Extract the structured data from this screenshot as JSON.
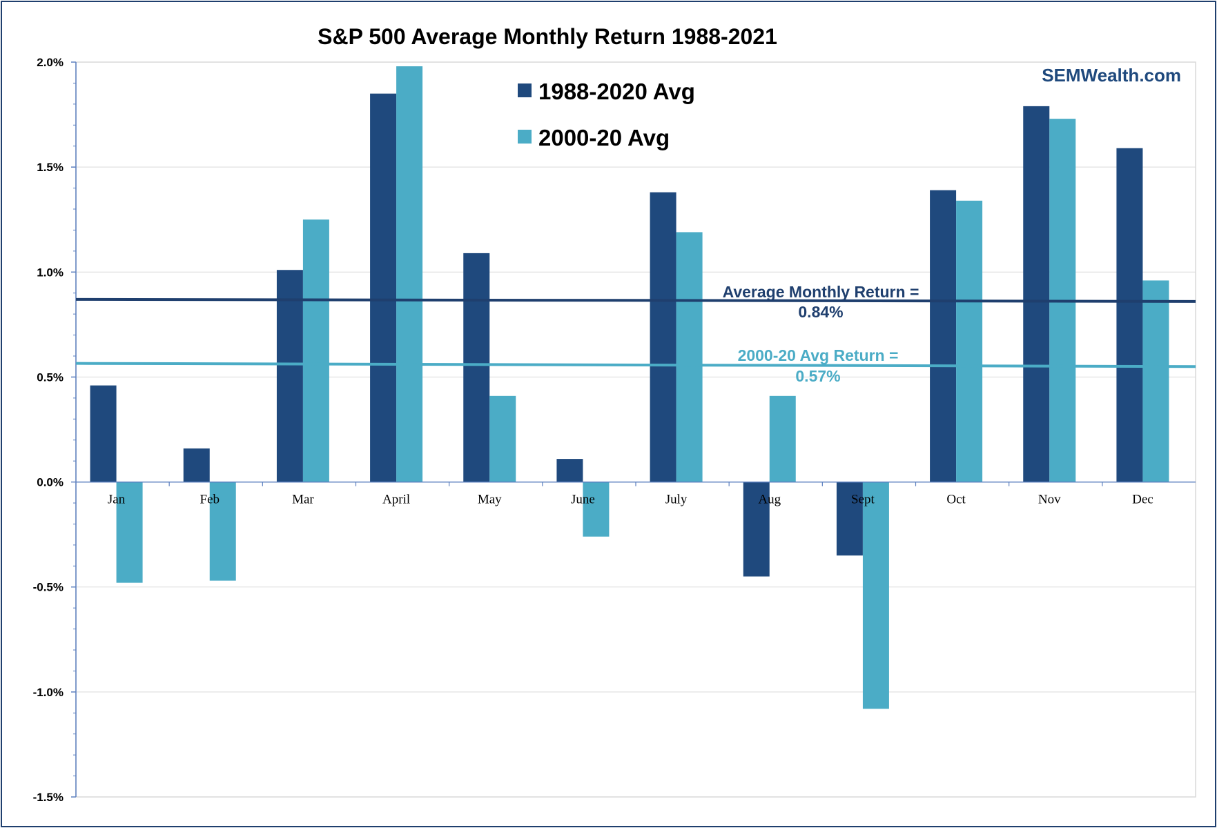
{
  "colors": {
    "series_dark": "#1f497d",
    "series_light": "#4bacc6",
    "avg_dark": "#1f3f6e",
    "avg_light": "#4bacc6",
    "brand": "#1f497d",
    "gridline": "#d9d9d9",
    "axis": "#5b7fbf"
  },
  "brand": {
    "label": "SEMWealth.com"
  },
  "chart_data": {
    "type": "bar",
    "title": "S&P 500 Average Monthly Return 1988-2021",
    "xlabel": "",
    "ylabel": "",
    "ylim": [
      -1.5,
      2.0
    ],
    "yticks": [
      2.0,
      1.5,
      1.0,
      0.5,
      0.0,
      -0.5,
      -1.0,
      -1.5
    ],
    "ytick_labels": [
      "2.0%",
      "1.5%",
      "1.0%",
      "0.5%",
      "0.0%",
      "-0.5%",
      "-1.0%",
      "-1.5%"
    ],
    "categories": [
      "Jan",
      "Feb",
      "Mar",
      "April",
      "May",
      "June",
      "July",
      "Aug",
      "Sept",
      "Oct",
      "Nov",
      "Dec"
    ],
    "series": [
      {
        "name": "1988-2020 Avg",
        "color_key": "series_dark",
        "values": [
          0.46,
          0.16,
          1.01,
          1.85,
          1.09,
          0.11,
          1.38,
          -0.45,
          -0.35,
          1.39,
          1.79,
          1.59
        ]
      },
      {
        "name": "2000-20 Avg",
        "color_key": "series_light",
        "values": [
          -0.48,
          -0.47,
          1.25,
          1.98,
          0.41,
          -0.26,
          1.19,
          0.41,
          -1.08,
          1.34,
          1.73,
          0.96
        ]
      }
    ],
    "legend_position": "top-center",
    "grid": true,
    "reference_lines": [
      {
        "name": "avg-monthly-return-line",
        "label_line1": "Average Monthly Return =",
        "label_line2": "0.84%",
        "start_value": 0.87,
        "end_value": 0.86,
        "color_key": "avg_dark"
      },
      {
        "name": "avg-2000-20-return-line",
        "label_line1": "2000-20 Avg Return =",
        "label_line2": "0.57%",
        "start_value": 0.565,
        "end_value": 0.55,
        "color_key": "avg_light"
      }
    ]
  }
}
